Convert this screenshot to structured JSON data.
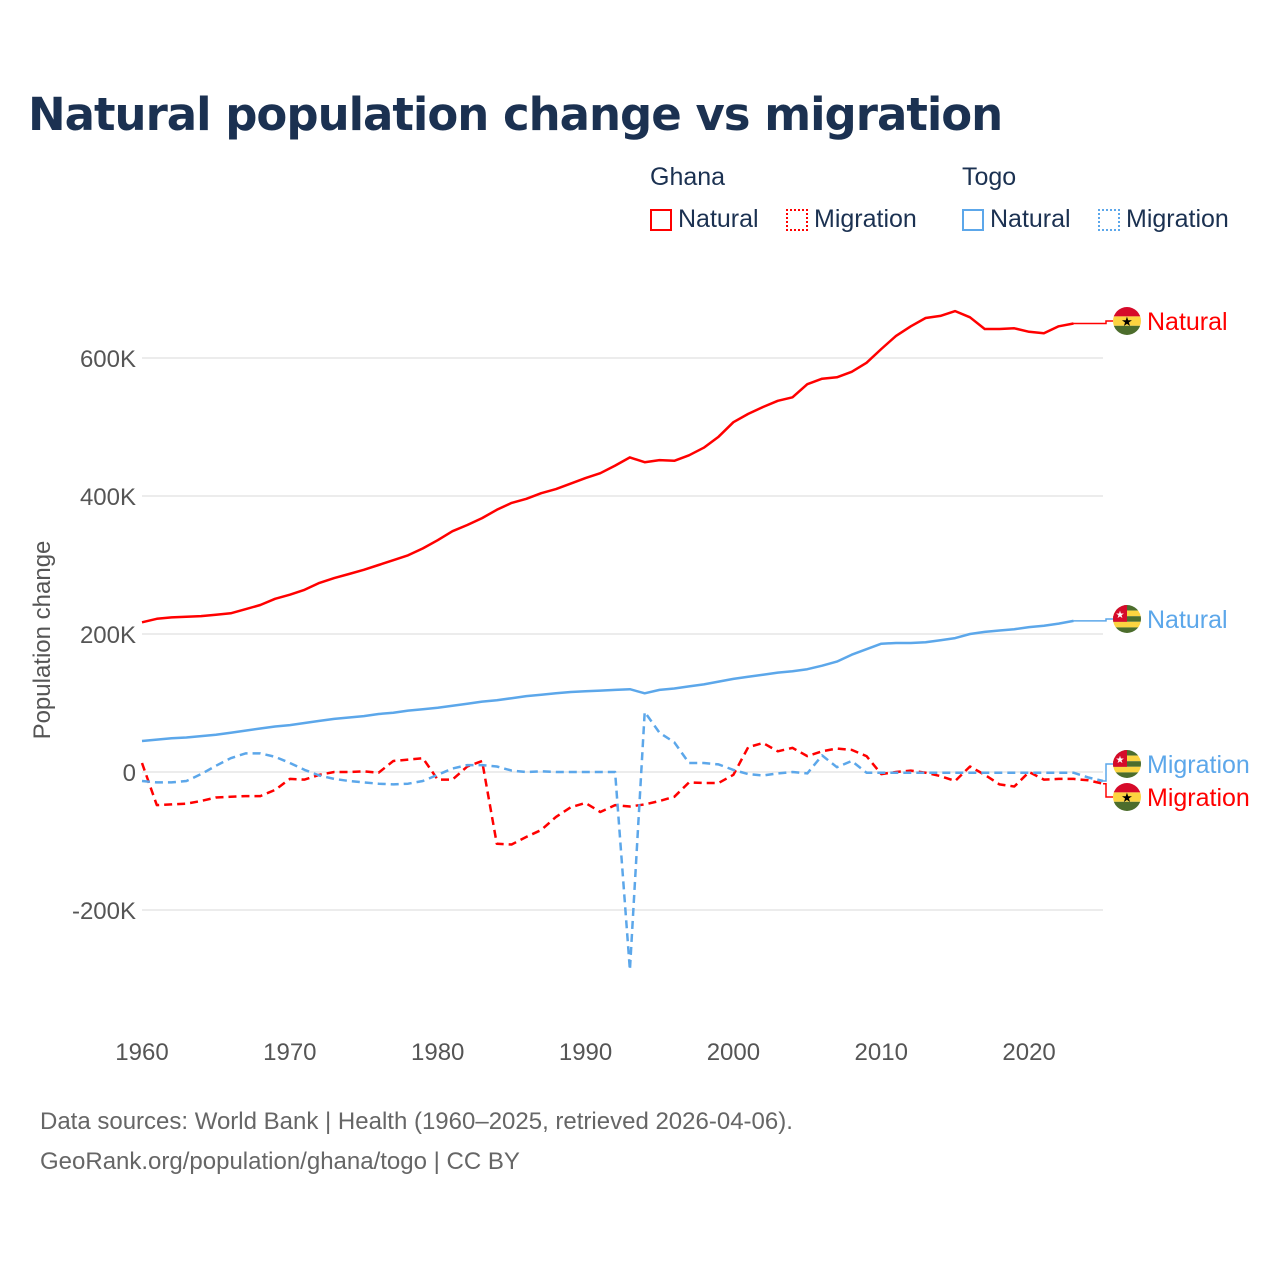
{
  "chart_data": {
    "type": "line",
    "title": "Natural population change vs migration",
    "xlabel": "",
    "ylabel": "Population change",
    "xlim": [
      1960,
      2025
    ],
    "ylim": [
      -300000,
      700000
    ],
    "x_ticks": [
      1960,
      1970,
      1980,
      1990,
      2000,
      2010,
      2020
    ],
    "x_tick_labels": [
      "1960",
      "1970",
      "1980",
      "1990",
      "2000",
      "2010",
      "2020"
    ],
    "y_ticks": [
      -200000,
      0,
      200000,
      400000,
      600000
    ],
    "y_tick_labels": [
      "-200K",
      "0",
      "200K",
      "400K",
      "600K"
    ],
    "grid": true,
    "legend_position": "top-right",
    "legend": {
      "groups": [
        {
          "name": "Ghana",
          "items": [
            "Natural",
            "Migration"
          ]
        },
        {
          "name": "Togo",
          "items": [
            "Natural",
            "Migration"
          ]
        }
      ]
    },
    "series": [
      {
        "name": "Ghana Natural",
        "country": "Ghana",
        "kind": "Natural",
        "label": "Natural",
        "color": "#ff0000",
        "dashed": false,
        "x_start": 1960,
        "values_k": [
          217,
          222,
          224,
          225,
          226,
          228,
          230,
          236,
          242,
          251,
          257,
          264,
          274,
          281,
          287,
          293,
          300,
          307,
          314,
          324,
          336,
          349,
          358,
          368,
          380,
          390,
          396,
          404,
          410,
          418,
          426,
          433,
          444,
          456,
          449,
          452,
          451,
          459,
          470,
          486,
          507,
          519,
          529,
          538,
          543,
          562,
          570,
          572,
          580,
          593,
          613,
          632,
          646,
          658,
          661,
          668,
          659,
          642,
          642,
          643,
          638,
          636,
          646,
          650
        ]
      },
      {
        "name": "Togo Natural",
        "country": "Togo",
        "kind": "Natural",
        "label": "Natural",
        "color": "#5ca7ea",
        "dashed": false,
        "x_start": 1960,
        "values_k": [
          45,
          47,
          49,
          50,
          52,
          54,
          57,
          60,
          63,
          66,
          68,
          71,
          74,
          77,
          79,
          81,
          84,
          86,
          89,
          91,
          93,
          96,
          99,
          102,
          104,
          107,
          110,
          112,
          114,
          116,
          117,
          118,
          119,
          120,
          114,
          119,
          121,
          124,
          127,
          131,
          135,
          138,
          141,
          144,
          146,
          149,
          154,
          160,
          170,
          178,
          186,
          187,
          187,
          188,
          191,
          194,
          200,
          203,
          205,
          207,
          210,
          212,
          215,
          219
        ]
      },
      {
        "name": "Ghana Migration",
        "country": "Ghana",
        "kind": "Migration",
        "label": "Migration",
        "color": "#ff0000",
        "dashed": true,
        "x_start": 1960,
        "values_k": [
          13,
          -48,
          -47,
          -46,
          -42,
          -37,
          -36,
          -35,
          -35,
          -26,
          -10,
          -11,
          -4,
          0,
          0,
          1,
          -1,
          16,
          18,
          20,
          -11,
          -11,
          8,
          16,
          -104,
          -105,
          -94,
          -84,
          -65,
          -51,
          -45,
          -58,
          -48,
          -50,
          -47,
          -42,
          -36,
          -15,
          -16,
          -16,
          -4,
          36,
          42,
          30,
          35,
          23,
          30,
          34,
          32,
          23,
          -3,
          0,
          2,
          -1,
          -6,
          -13,
          8,
          -4,
          -18,
          -21,
          0,
          -11,
          -10,
          -10,
          -12,
          -17
        ]
      },
      {
        "name": "Togo Migration",
        "country": "Togo",
        "kind": "Migration",
        "label": "Migration",
        "color": "#5ca7ea",
        "dashed": true,
        "x_start": 1960,
        "values_k": [
          -13,
          -15,
          -15,
          -13,
          -3,
          9,
          20,
          27,
          27,
          22,
          13,
          3,
          -5,
          -10,
          -13,
          -15,
          -17,
          -18,
          -17,
          -13,
          -4,
          5,
          10,
          10,
          8,
          2,
          0,
          1,
          0,
          0,
          0,
          0,
          0,
          -287,
          87,
          57,
          43,
          13,
          13,
          11,
          3,
          -3,
          -5,
          -2,
          0,
          -2,
          24,
          7,
          16,
          -1,
          -1,
          -1,
          -1,
          -1,
          -1,
          -1,
          -1,
          -1,
          -1,
          -1,
          -1,
          -1,
          -1,
          -1,
          -8,
          -13
        ]
      }
    ]
  },
  "footer": {
    "line1": "Data sources: World Bank | Health (1960–2025, retrieved 2026-04-06).",
    "line2": "GeoRank.org/population/ghana/togo | CC BY"
  },
  "colors": {
    "ghana": "#ff0000",
    "togo": "#5ca7ea",
    "title": "#1b3151"
  }
}
